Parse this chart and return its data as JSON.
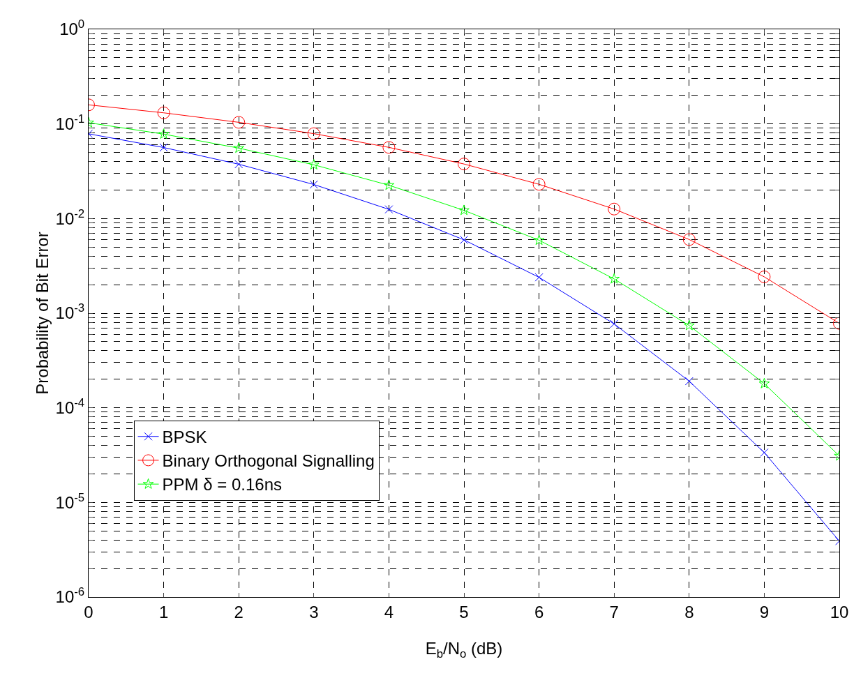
{
  "chart_data": {
    "type": "line",
    "xlabel": "E$_{b}$/N$_{o}$ (dB)",
    "ylabel": "Probability of Bit Error",
    "x": [
      0,
      1,
      2,
      3,
      4,
      5,
      6,
      7,
      8,
      9,
      10
    ],
    "series": [
      {
        "name": "BPSK",
        "color": "#0000ff",
        "marker": "cross",
        "values": [
          0.0786,
          0.0563,
          0.0375,
          0.0229,
          0.0125,
          0.00595,
          0.00239,
          0.00077,
          0.000191,
          3.36e-05,
          3.9e-06
        ]
      },
      {
        "name": "Binary Orthogonal Signalling",
        "color": "#ff0000",
        "marker": "circle",
        "values": [
          0.159,
          0.131,
          0.104,
          0.0789,
          0.0565,
          0.0377,
          0.023,
          0.0126,
          0.006,
          0.00242,
          0.00078
        ]
      },
      {
        "name": "PPM δ = 0.16ns",
        "color": "#00ff00",
        "marker": "star",
        "values": [
          0.103,
          0.078,
          0.0555,
          0.037,
          0.0225,
          0.0122,
          0.0059,
          0.0023,
          0.00074,
          0.00018,
          3.1e-05
        ]
      }
    ],
    "log": "y",
    "xlim": [
      0,
      10
    ],
    "xticks": [
      0,
      1,
      2,
      3,
      4,
      5,
      6,
      7,
      8,
      9,
      10
    ],
    "ylim": [
      1e-06,
      1
    ],
    "yticks": [
      {
        "value": 1e-06,
        "label": "10$^{-6}$"
      },
      {
        "value": 2e-06,
        "label": null
      },
      {
        "value": 3e-06,
        "label": null
      },
      {
        "value": 4e-06,
        "label": null
      },
      {
        "value": 5e-06,
        "label": null
      },
      {
        "value": 6e-06,
        "label": null
      },
      {
        "value": 7e-06,
        "label": null
      },
      {
        "value": 8e-06,
        "label": null
      },
      {
        "value": 9e-06,
        "label": null
      },
      {
        "value": 1e-05,
        "label": "10$^{-5}$"
      },
      {
        "value": 2e-05,
        "label": null
      },
      {
        "value": 3e-05,
        "label": null
      },
      {
        "value": 4e-05,
        "label": null
      },
      {
        "value": 5e-05,
        "label": null
      },
      {
        "value": 6e-05,
        "label": null
      },
      {
        "value": 7e-05,
        "label": null
      },
      {
        "value": 8e-05,
        "label": null
      },
      {
        "value": 9e-05,
        "label": null
      },
      {
        "value": 0.0001,
        "label": "10$^{-4}$"
      },
      {
        "value": 0.0002,
        "label": null
      },
      {
        "value": 0.0003,
        "label": null
      },
      {
        "value": 0.0004,
        "label": null
      },
      {
        "value": 0.0005,
        "label": null
      },
      {
        "value": 0.0006,
        "label": null
      },
      {
        "value": 0.0007,
        "label": null
      },
      {
        "value": 0.0008,
        "label": null
      },
      {
        "value": 0.0009,
        "label": null
      },
      {
        "value": 0.001,
        "label": "10$^{-3}$"
      },
      {
        "value": 0.002,
        "label": null
      },
      {
        "value": 0.003,
        "label": null
      },
      {
        "value": 0.004,
        "label": null
      },
      {
        "value": 0.005,
        "label": null
      },
      {
        "value": 0.006,
        "label": null
      },
      {
        "value": 0.007,
        "label": null
      },
      {
        "value": 0.008,
        "label": null
      },
      {
        "value": 0.009,
        "label": null
      },
      {
        "value": 0.01,
        "label": "10$^{-2}$"
      },
      {
        "value": 0.02,
        "label": null
      },
      {
        "value": 0.03,
        "label": null
      },
      {
        "value": 0.04,
        "label": null
      },
      {
        "value": 0.05,
        "label": null
      },
      {
        "value": 0.06,
        "label": null
      },
      {
        "value": 0.07,
        "label": null
      },
      {
        "value": 0.08,
        "label": null
      },
      {
        "value": 0.09,
        "label": null
      },
      {
        "value": 0.1,
        "label": "10$^{-1}$"
      },
      {
        "value": 0.2,
        "label": null
      },
      {
        "value": 0.3,
        "label": null
      },
      {
        "value": 0.4,
        "label": null
      },
      {
        "value": 0.5,
        "label": null
      },
      {
        "value": 0.6,
        "label": null
      },
      {
        "value": 0.7,
        "label": null
      },
      {
        "value": 0.8,
        "label": null
      },
      {
        "value": 0.9,
        "label": null
      },
      {
        "value": 1,
        "label": "10$^{0}$"
      }
    ],
    "grid": true,
    "legend": "bottom left",
    "line_style": "solid"
  }
}
